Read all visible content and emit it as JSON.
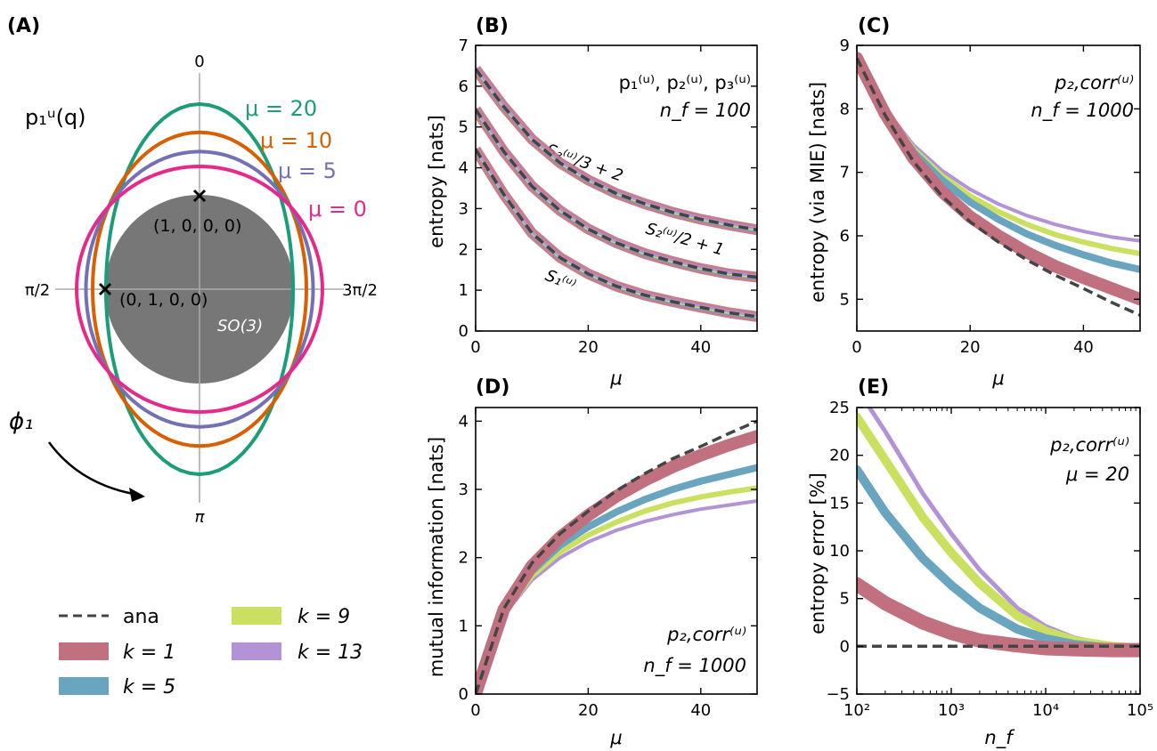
{
  "colors": {
    "ana": "#444444",
    "k1": "#c0707f",
    "k5": "#6aa5bf",
    "k9": "#cbe060",
    "k13": "#b392d6",
    "mu20": "#1b9e77",
    "mu10": "#d95f02",
    "mu5": "#7570b3",
    "mu0": "#e7298a",
    "so3": "#777777"
  },
  "panelA": {
    "label": "(A)",
    "title": "p₁ᵘ(q)",
    "tick_top": "0",
    "tick_bottom": "π",
    "tick_left": "π/2",
    "tick_right": "3π/2",
    "point1": "(1, 0, 0, 0)",
    "point2": "(0, 1, 0, 0)",
    "so3": "SO(3)",
    "phi": "ϕ₁",
    "curves": [
      {
        "label": "μ = 20",
        "mu": 20,
        "color": "#1b9e77"
      },
      {
        "label": "μ = 10",
        "mu": 10,
        "color": "#d95f02"
      },
      {
        "label": "μ = 5",
        "mu": 5,
        "color": "#7570b3"
      },
      {
        "label": "μ = 0",
        "mu": 0,
        "color": "#e7298a"
      }
    ]
  },
  "legend": [
    {
      "key": "ana",
      "label": "ana",
      "style": "dashed",
      "color": "#444444"
    },
    {
      "key": "k9",
      "label": "k = 9",
      "style": "band",
      "color": "#cbe060"
    },
    {
      "key": "k1",
      "label": "k = 1",
      "style": "band",
      "color": "#c0707f"
    },
    {
      "key": "k13",
      "label": "k = 13",
      "style": "band",
      "color": "#b392d6"
    },
    {
      "key": "k5",
      "label": "k = 5",
      "style": "band",
      "color": "#6aa5bf"
    }
  ],
  "chart_data": [
    {
      "panel": "(B)",
      "type": "line",
      "xlabel": "μ",
      "ylabel": "entropy [nats]",
      "xlim": [
        0,
        50
      ],
      "ylim": [
        0,
        7
      ],
      "xticks": [
        0,
        20,
        40
      ],
      "yticks": [
        0,
        1,
        2,
        3,
        4,
        5,
        6,
        7
      ],
      "annotation": [
        "p₁⁽ᵘ⁾, p₂⁽ᵘ⁾, p₃⁽ᵘ⁾",
        "n_f = 100"
      ],
      "x": [
        0,
        5,
        10,
        15,
        20,
        25,
        30,
        35,
        40,
        45,
        50
      ],
      "series": [
        {
          "name": "S₃⁽ᵘ⁾/3 + 2",
          "values": [
            6.42,
            5.5,
            4.7,
            4.12,
            3.7,
            3.37,
            3.12,
            2.91,
            2.74,
            2.6,
            2.48
          ]
        },
        {
          "name": "S₂⁽ᵘ⁾/2 + 1",
          "values": [
            5.43,
            4.4,
            3.55,
            2.95,
            2.5,
            2.16,
            1.9,
            1.7,
            1.53,
            1.4,
            1.32
          ]
        },
        {
          "name": "S₁⁽ᵘ⁾",
          "values": [
            4.45,
            3.35,
            2.4,
            1.8,
            1.4,
            1.1,
            0.88,
            0.72,
            0.58,
            0.45,
            0.35
          ]
        }
      ]
    },
    {
      "panel": "(C)",
      "type": "line",
      "xlabel": "μ",
      "ylabel": "entropy (via MIE) [nats]",
      "xlim": [
        0,
        50
      ],
      "ylim": [
        4.5,
        9
      ],
      "xticks": [
        0,
        20,
        40
      ],
      "yticks": [
        5,
        6,
        7,
        8,
        9
      ],
      "annotation": [
        "p₂,corr⁽ᵘ⁾",
        "n_f = 1000"
      ],
      "x": [
        0,
        5,
        10,
        15,
        20,
        25,
        30,
        35,
        40,
        45,
        50
      ],
      "series": [
        {
          "name": "ana",
          "values": [
            8.8,
            7.9,
            7.17,
            6.63,
            6.22,
            5.9,
            5.62,
            5.38,
            5.17,
            4.95,
            4.75
          ]
        },
        {
          "name": "k = 1",
          "values": [
            8.8,
            7.92,
            7.22,
            6.7,
            6.3,
            6.0,
            5.74,
            5.52,
            5.34,
            5.17,
            5.0
          ]
        },
        {
          "name": "k = 5",
          "values": [
            8.8,
            7.95,
            7.32,
            6.88,
            6.53,
            6.26,
            6.03,
            5.85,
            5.7,
            5.57,
            5.47
          ]
        },
        {
          "name": "k = 9",
          "values": [
            8.8,
            7.97,
            7.37,
            6.95,
            6.63,
            6.38,
            6.18,
            6.02,
            5.9,
            5.8,
            5.72
          ]
        },
        {
          "name": "k = 13",
          "values": [
            8.8,
            8.0,
            7.43,
            7.03,
            6.73,
            6.5,
            6.32,
            6.18,
            6.07,
            5.98,
            5.92
          ]
        }
      ]
    },
    {
      "panel": "(D)",
      "type": "line",
      "xlabel": "μ",
      "ylabel": "mutual information [nats]",
      "xlim": [
        0,
        50
      ],
      "ylim": [
        0,
        4.2
      ],
      "xticks": [
        0,
        20,
        40
      ],
      "yticks": [
        0,
        1,
        2,
        3,
        4
      ],
      "annotation": [
        "p₂,corr⁽ᵘ⁾",
        "n_f = 1000"
      ],
      "x": [
        0,
        5,
        10,
        15,
        20,
        25,
        30,
        35,
        40,
        45,
        50
      ],
      "series": [
        {
          "name": "ana",
          "values": [
            0,
            1.25,
            1.92,
            2.35,
            2.68,
            2.98,
            3.23,
            3.45,
            3.63,
            3.82,
            4.0
          ]
        },
        {
          "name": "k = 1",
          "values": [
            0,
            1.24,
            1.88,
            2.3,
            2.62,
            2.9,
            3.13,
            3.33,
            3.5,
            3.65,
            3.78
          ]
        },
        {
          "name": "k = 5",
          "values": [
            0,
            1.2,
            1.8,
            2.18,
            2.45,
            2.67,
            2.85,
            3.0,
            3.12,
            3.22,
            3.32
          ]
        },
        {
          "name": "k = 9",
          "values": [
            0,
            1.18,
            1.73,
            2.08,
            2.33,
            2.52,
            2.68,
            2.8,
            2.89,
            2.96,
            3.02
          ]
        },
        {
          "name": "k = 13",
          "values": [
            0,
            1.16,
            1.67,
            2.0,
            2.23,
            2.4,
            2.53,
            2.63,
            2.71,
            2.77,
            2.83
          ]
        }
      ]
    },
    {
      "panel": "(E)",
      "type": "line",
      "xlabel": "n_f",
      "ylabel": "entropy error [%]",
      "xscale": "log",
      "xlim": [
        100,
        100000
      ],
      "ylim": [
        -5,
        25
      ],
      "yticks": [
        -5,
        0,
        5,
        10,
        15,
        20,
        25
      ],
      "xticks": [
        "10²",
        "10³",
        "10⁴",
        "10⁵"
      ],
      "annotation": [
        "p₂,corr⁽ᵘ⁾",
        "μ = 20"
      ],
      "x": [
        100,
        200,
        500,
        1000,
        2000,
        5000,
        10000,
        20000,
        50000,
        100000
      ],
      "series": [
        {
          "name": "ana",
          "values": [
            0,
            0,
            0,
            0,
            0,
            0,
            0,
            0,
            0,
            0
          ]
        },
        {
          "name": "k = 1",
          "values": [
            6.5,
            4.5,
            2.5,
            1.4,
            0.6,
            0.1,
            -0.2,
            -0.3,
            -0.4,
            -0.4
          ]
        },
        {
          "name": "k = 5",
          "values": [
            18.5,
            14.0,
            9.2,
            6.4,
            4.0,
            1.8,
            0.8,
            0.2,
            -0.2,
            -0.3
          ]
        },
        {
          "name": "k = 9",
          "values": [
            24.0,
            19.5,
            13.5,
            9.8,
            6.6,
            3.2,
            1.6,
            0.6,
            0.0,
            -0.2
          ]
        },
        {
          "name": "k = 13",
          "values": [
            27.0,
            22.5,
            16.0,
            11.8,
            8.0,
            4.0,
            2.1,
            0.9,
            0.1,
            -0.1
          ]
        }
      ]
    }
  ]
}
